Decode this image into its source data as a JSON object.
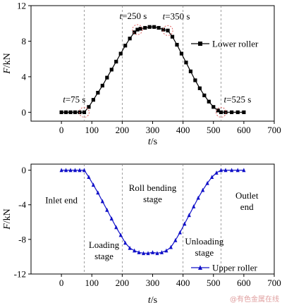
{
  "watermark": "@有色金属在线",
  "chart_data": [
    {
      "type": "scatter",
      "ylabel": "F/kN",
      "xlabel": "t/s",
      "xlim": [
        -100,
        700
      ],
      "ylim": [
        -1,
        12
      ],
      "xticks": [
        0,
        100,
        200,
        300,
        400,
        500,
        600,
        700
      ],
      "yticks": [
        0,
        4,
        8,
        12
      ],
      "dashed_vlines": [
        75,
        200,
        400,
        525
      ],
      "grid": false,
      "legend_position": "top-right",
      "series": [
        {
          "name": "Lower roller",
          "color": "#000000",
          "marker": "square",
          "x": [
            0,
            15,
            30,
            45,
            60,
            75,
            90,
            105,
            120,
            135,
            150,
            165,
            180,
            195,
            210,
            225,
            240,
            250,
            260,
            275,
            290,
            305,
            320,
            335,
            350,
            365,
            380,
            395,
            410,
            425,
            440,
            455,
            470,
            485,
            500,
            515,
            525,
            540,
            560,
            580,
            600
          ],
          "y": [
            0,
            0,
            0,
            0,
            0,
            0,
            0.6,
            1.4,
            2.2,
            3.0,
            3.9,
            4.8,
            5.7,
            6.6,
            7.5,
            8.3,
            9.0,
            9.3,
            9.4,
            9.5,
            9.6,
            9.6,
            9.5,
            9.3,
            9.2,
            8.5,
            7.6,
            6.6,
            5.6,
            4.6,
            3.6,
            2.7,
            1.9,
            1.2,
            0.6,
            0.2,
            0,
            0,
            0,
            0,
            0
          ]
        }
      ],
      "annotations": [
        {
          "text": "t=75 s",
          "x": 75,
          "y": 0
        },
        {
          "text": "t=250 s",
          "x": 250,
          "y": 9.3
        },
        {
          "text": "t=350 s",
          "x": 350,
          "y": 9.2
        },
        {
          "text": "t=525 s",
          "x": 525,
          "y": 0
        }
      ]
    },
    {
      "type": "scatter",
      "ylabel": "F/kN",
      "xlabel": "t/s",
      "xlim": [
        -100,
        700
      ],
      "ylim": [
        -12,
        0.7
      ],
      "xticks": [
        0,
        100,
        200,
        300,
        400,
        500,
        600,
        700
      ],
      "yticks": [
        -12,
        -8,
        -4,
        0
      ],
      "dashed_vlines": [
        75,
        200,
        400,
        525
      ],
      "grid": false,
      "legend_position": "bottom-right",
      "series": [
        {
          "name": "Upper roller",
          "color": "#1010c8",
          "marker": "triangle",
          "x": [
            0,
            15,
            30,
            45,
            60,
            75,
            90,
            105,
            120,
            135,
            150,
            165,
            180,
            195,
            210,
            225,
            240,
            255,
            270,
            285,
            300,
            315,
            330,
            345,
            360,
            375,
            390,
            405,
            420,
            435,
            450,
            465,
            480,
            495,
            510,
            525,
            540,
            560,
            580,
            600
          ],
          "y": [
            0,
            0,
            0,
            0,
            0,
            0,
            -0.8,
            -1.7,
            -2.6,
            -3.6,
            -4.6,
            -5.6,
            -6.6,
            -7.5,
            -8.4,
            -9.0,
            -9.3,
            -9.5,
            -9.6,
            -9.6,
            -9.5,
            -9.6,
            -9.5,
            -9.3,
            -8.9,
            -8.1,
            -7.2,
            -6.2,
            -5.2,
            -4.2,
            -3.2,
            -2.3,
            -1.5,
            -0.8,
            -0.3,
            0,
            0,
            0,
            0,
            0
          ]
        }
      ],
      "stage_labels": [
        {
          "text": [
            "Inlet end"
          ],
          "x": 0,
          "y": -3.8
        },
        {
          "text": [
            "Loading",
            "stage"
          ],
          "x": 140,
          "y": -9.0
        },
        {
          "text": [
            "Roll bending",
            "stage"
          ],
          "x": 300,
          "y": -2.4
        },
        {
          "text": [
            "Unloading",
            "stage"
          ],
          "x": 470,
          "y": -8.6
        },
        {
          "text": [
            "Outlet",
            "end"
          ],
          "x": 610,
          "y": -3.3
        }
      ]
    }
  ]
}
